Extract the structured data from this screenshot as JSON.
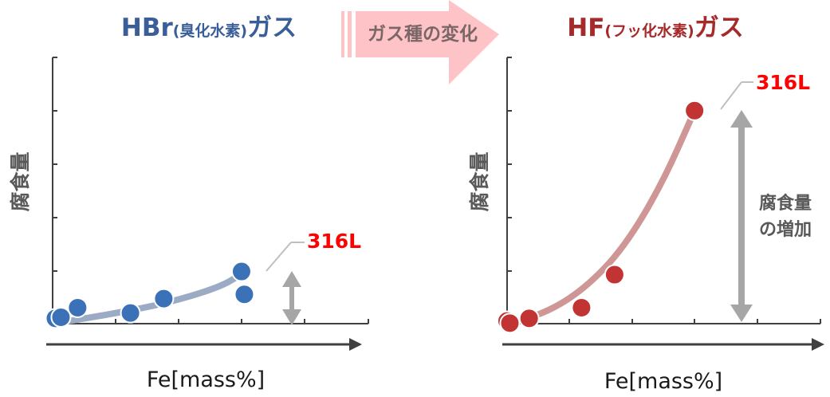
{
  "colors": {
    "hbr_title": "#3a5f98",
    "hf_title": "#a52a2a",
    "hbr_point": "#3b71b7",
    "hbr_curve": "#9aabc3",
    "hf_point": "#c23333",
    "hf_curve": "#cf9696",
    "arrow_fill": "#fdc3c6",
    "grey_arrow": "#a6a6a6",
    "label_red": "#ff0000",
    "axis_grey": "#595959"
  },
  "banner": {
    "label": "ガス種の変化"
  },
  "chart_data": [
    {
      "type": "scatter",
      "title_main": "HBr",
      "title_sub": "(臭化水素)",
      "title_tail": "ガス",
      "xlabel": "Fe[mass%]",
      "ylabel": "腐食量",
      "xlim": [
        0,
        5
      ],
      "ylim": [
        0,
        5
      ],
      "grid": false,
      "series": [
        {
          "name": "",
          "points": [
            [
              0.05,
              0.1
            ],
            [
              0.15,
              0.12
            ],
            [
              0.45,
              0.3
            ],
            [
              1.4,
              0.2
            ],
            [
              2.0,
              0.47
            ],
            [
              3.4,
              0.98
            ],
            [
              3.45,
              0.55
            ]
          ]
        }
      ],
      "annotation": {
        "text": "316L"
      },
      "trend": [
        [
          0,
          0
        ],
        [
          1,
          0.17
        ],
        [
          2,
          0.37
        ],
        [
          3,
          0.68
        ],
        [
          3.4,
          0.93
        ]
      ]
    },
    {
      "type": "scatter",
      "title_main": "HF",
      "title_sub": "(フッ化水素)",
      "title_tail": "ガス",
      "xlabel": "Fe[mass%]",
      "ylabel": "腐食量",
      "xlim": [
        0,
        5
      ],
      "ylim": [
        0,
        5
      ],
      "grid": false,
      "series": [
        {
          "name": "",
          "points": [
            [
              0.0,
              0.05
            ],
            [
              0.05,
              0.01
            ],
            [
              0.4,
              0.1
            ],
            [
              1.35,
              0.3
            ],
            [
              1.95,
              0.92
            ],
            [
              3.4,
              4.0
            ]
          ]
        }
      ],
      "annotation": {
        "text": "316L"
      },
      "annotation_arrow": {
        "text_line1": "腐食量",
        "text_line2": "の増加"
      },
      "trend": [
        [
          0,
          0
        ],
        [
          0.7,
          0.2
        ],
        [
          1.4,
          0.65
        ],
        [
          2.1,
          1.4
        ],
        [
          2.8,
          2.6
        ],
        [
          3.4,
          4.0
        ]
      ]
    }
  ]
}
